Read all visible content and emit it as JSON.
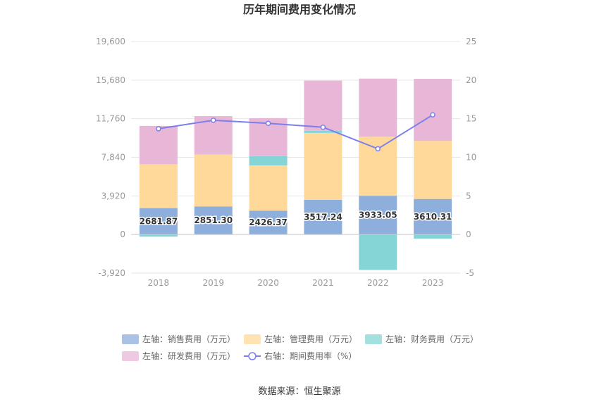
{
  "chart_data": {
    "type": "bar",
    "title": "历年期间费用变化情况",
    "categories": [
      "2018",
      "2019",
      "2020",
      "2021",
      "2022",
      "2023"
    ],
    "left_axis": {
      "ylim": [
        -3920,
        19600
      ],
      "ticks": [
        -3920,
        0,
        3920,
        7840,
        11760,
        15680,
        19600
      ],
      "tick_labels": [
        "-3,920",
        "0",
        "3,920",
        "7,840",
        "11,760",
        "15,680",
        "19,600"
      ]
    },
    "right_axis": {
      "ylim": [
        -5,
        25
      ],
      "ticks": [
        -5,
        0,
        5,
        10,
        15,
        20,
        25
      ],
      "tick_labels": [
        "-5",
        "0",
        "5",
        "10",
        "15",
        "20",
        "25"
      ]
    },
    "series": [
      {
        "name": "左轴：销售费用（万元）",
        "axis": "left",
        "kind": "bar",
        "color": "#8eaedb",
        "values": [
          2681.87,
          2851.3,
          2426.37,
          3517.24,
          3933.05,
          3610.31
        ],
        "labels": [
          "2681.87",
          "2851.30",
          "2426.37",
          "3517.24",
          "3933.05",
          "3610.31"
        ]
      },
      {
        "name": "左轴：管理费用（万元）",
        "axis": "left",
        "kind": "bar",
        "color": "#ffd99a",
        "values": [
          4450,
          5300,
          4600,
          6800,
          6000,
          5900
        ]
      },
      {
        "name": "左轴：财务费用（万元）",
        "axis": "left",
        "kind": "bar",
        "color": "#86d5d6",
        "values": [
          -220,
          20,
          940,
          210,
          -3600,
          -420
        ]
      },
      {
        "name": "左轴：研发费用（万元）",
        "axis": "left",
        "kind": "bar",
        "color": "#e8b7d8",
        "values": [
          3900,
          3850,
          3850,
          5100,
          5900,
          6300
        ]
      },
      {
        "name": "右轴：期间费用率（%）",
        "axis": "right",
        "kind": "line",
        "color": "#7b7fee",
        "values": [
          13.7,
          14.8,
          14.4,
          13.9,
          11.1,
          15.5
        ]
      }
    ],
    "legend_position": "bottom"
  },
  "source": "数据来源：恒生聚源"
}
